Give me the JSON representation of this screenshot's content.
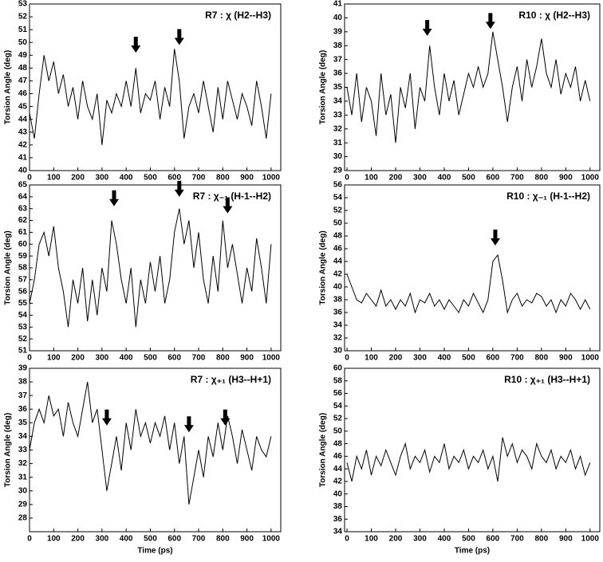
{
  "chart_data": [
    {
      "type": "line",
      "title": "R7 : χ (H2--H3)",
      "ylabel": "Torsion Angle (deg)",
      "x": [
        0,
        20,
        40,
        60,
        80,
        100,
        120,
        140,
        160,
        180,
        200,
        220,
        240,
        260,
        280,
        300,
        320,
        340,
        360,
        380,
        400,
        420,
        440,
        460,
        480,
        500,
        520,
        540,
        560,
        580,
        600,
        620,
        640,
        660,
        680,
        700,
        720,
        740,
        760,
        780,
        800,
        820,
        840,
        860,
        880,
        900,
        920,
        940,
        960,
        980,
        1000
      ],
      "series": [
        {
          "color": "#000000",
          "values": [
            44.5,
            42.5,
            46,
            49,
            47,
            48.5,
            46,
            47.5,
            45,
            46.5,
            44,
            47,
            45,
            44,
            46,
            42,
            45.5,
            44.5,
            46,
            45,
            47,
            45,
            48,
            44.5,
            46,
            45.5,
            47,
            44,
            46.5,
            45,
            49.5,
            47,
            42.5,
            45,
            46,
            44.5,
            47,
            45,
            43,
            46.5,
            44,
            47,
            45.5,
            44,
            46,
            45,
            43.5,
            47,
            45,
            42.5,
            46
          ]
        }
      ],
      "arrows": [
        {
          "x": 440,
          "y": 49.2
        },
        {
          "x": 620,
          "y": 49.8
        }
      ],
      "xlim": [
        0,
        1040
      ],
      "ylim": [
        40,
        53
      ],
      "xticks": [
        0,
        100,
        200,
        300,
        400,
        500,
        600,
        700,
        800,
        900,
        1000
      ],
      "yticks": [
        40,
        41,
        42,
        43,
        44,
        45,
        46,
        47,
        48,
        49,
        50,
        51,
        52,
        53
      ]
    },
    {
      "type": "line",
      "title": "R10 : χ (H2--H3)",
      "ylabel": "Torsion Angle (deg)",
      "x": [
        0,
        20,
        40,
        60,
        80,
        100,
        120,
        140,
        160,
        180,
        200,
        220,
        240,
        260,
        280,
        300,
        320,
        340,
        360,
        380,
        400,
        420,
        440,
        460,
        480,
        500,
        520,
        540,
        560,
        580,
        600,
        620,
        640,
        660,
        680,
        700,
        720,
        740,
        760,
        780,
        800,
        820,
        840,
        860,
        880,
        900,
        920,
        940,
        960,
        980,
        1000
      ],
      "series": [
        {
          "color": "#000000",
          "values": [
            35,
            33,
            36,
            32.5,
            35,
            34,
            31.5,
            36,
            33,
            34.5,
            31,
            35,
            33.5,
            36,
            32,
            35,
            34,
            38,
            35,
            33,
            36,
            34,
            35.5,
            33,
            34.5,
            36,
            35,
            36.5,
            35,
            36,
            39,
            37,
            35,
            32.5,
            35,
            36.5,
            34,
            37,
            35,
            36.5,
            38.5,
            36,
            35,
            37,
            34.5,
            36,
            35,
            36.5,
            34,
            35.5,
            34
          ]
        }
      ],
      "arrows": [
        {
          "x": 330,
          "y": 38.7
        },
        {
          "x": 590,
          "y": 39.2
        }
      ],
      "xlim": [
        -10,
        1040
      ],
      "ylim": [
        29,
        41
      ],
      "xticks": [
        0,
        100,
        200,
        300,
        400,
        500,
        600,
        700,
        800,
        900,
        1000
      ],
      "yticks": [
        29,
        30,
        31,
        32,
        33,
        34,
        35,
        36,
        37,
        38,
        39,
        40,
        41
      ]
    },
    {
      "type": "line",
      "title": "R7 : χ₋₁ (H-1--H2)",
      "ylabel": "Torsion Angle (deg)",
      "x": [
        0,
        20,
        40,
        60,
        80,
        100,
        120,
        140,
        160,
        180,
        200,
        220,
        240,
        260,
        280,
        300,
        320,
        340,
        360,
        380,
        400,
        420,
        440,
        460,
        480,
        500,
        520,
        540,
        560,
        580,
        600,
        620,
        640,
        660,
        680,
        700,
        720,
        740,
        760,
        780,
        800,
        820,
        840,
        860,
        880,
        900,
        920,
        940,
        960,
        980,
        1000
      ],
      "series": [
        {
          "color": "#000000",
          "values": [
            55,
            57,
            60,
            61,
            59,
            61.5,
            58,
            56,
            53,
            57,
            55,
            58,
            53.5,
            57,
            54,
            58,
            56,
            62,
            60,
            57,
            55,
            58,
            53,
            57,
            55,
            58.5,
            56,
            59,
            55,
            57,
            61,
            63,
            60,
            62,
            58,
            61,
            57,
            55,
            59,
            56,
            62,
            58,
            60,
            57.5,
            55,
            58,
            56,
            60.5,
            58,
            55,
            60
          ]
        }
      ],
      "arrows": [
        {
          "x": 350,
          "y": 63.2
        },
        {
          "x": 620,
          "y": 64
        },
        {
          "x": 820,
          "y": 62.6
        }
      ],
      "xlim": [
        0,
        1040
      ],
      "ylim": [
        51,
        65
      ],
      "xticks": [
        0,
        100,
        200,
        300,
        400,
        500,
        600,
        700,
        800,
        900,
        1000
      ],
      "yticks": [
        51,
        52,
        53,
        54,
        55,
        56,
        57,
        58,
        59,
        60,
        61,
        62,
        63,
        64,
        65
      ]
    },
    {
      "type": "line",
      "title": "R10 : χ₋₁ (H-1--H2)",
      "ylabel": "Torsion Angle (deg)",
      "x": [
        0,
        20,
        40,
        60,
        80,
        100,
        120,
        140,
        160,
        180,
        200,
        220,
        240,
        260,
        280,
        300,
        320,
        340,
        360,
        380,
        400,
        420,
        440,
        460,
        480,
        500,
        520,
        540,
        560,
        580,
        600,
        620,
        640,
        660,
        680,
        700,
        720,
        740,
        760,
        780,
        800,
        820,
        840,
        860,
        880,
        900,
        920,
        940,
        960,
        980,
        1000
      ],
      "series": [
        {
          "color": "#000000",
          "values": [
            42,
            40,
            38,
            37.5,
            39,
            38,
            37,
            39.5,
            37,
            38,
            36.5,
            38,
            37,
            39,
            36,
            38,
            37.5,
            39,
            37,
            38,
            36.5,
            38,
            37,
            36,
            38,
            37,
            39,
            37.5,
            36,
            38,
            44,
            45,
            41,
            36,
            38,
            39,
            37,
            38,
            37.5,
            39,
            38.5,
            37,
            38,
            36,
            38,
            37,
            39,
            38,
            36.5,
            38,
            36.5
          ]
        }
      ],
      "arrows": [
        {
          "x": 610,
          "y": 46.5
        }
      ],
      "xlim": [
        -10,
        1040
      ],
      "ylim": [
        30,
        56
      ],
      "xticks": [
        0,
        100,
        200,
        300,
        400,
        500,
        600,
        700,
        800,
        900,
        1000
      ],
      "yticks": [
        30,
        32,
        34,
        36,
        38,
        40,
        42,
        44,
        46,
        48,
        50,
        52,
        54,
        56
      ]
    },
    {
      "type": "line",
      "title": "R7 : χ₊₁ (H3--H+1)",
      "ylabel": "Torsion Angle (deg)",
      "xlabel": "Time (ps)",
      "x": [
        0,
        20,
        40,
        60,
        80,
        100,
        120,
        140,
        160,
        180,
        200,
        220,
        240,
        260,
        280,
        300,
        320,
        340,
        360,
        380,
        400,
        420,
        440,
        460,
        480,
        500,
        520,
        540,
        560,
        580,
        600,
        620,
        640,
        660,
        680,
        700,
        720,
        740,
        760,
        780,
        800,
        820,
        840,
        860,
        880,
        900,
        920,
        940,
        960,
        980,
        1000
      ],
      "series": [
        {
          "color": "#000000",
          "values": [
            33,
            35,
            36,
            35,
            37,
            35.5,
            36,
            34,
            36.5,
            35,
            34,
            36,
            38,
            35,
            36,
            33,
            30,
            32,
            34,
            31.5,
            35,
            33,
            36,
            34,
            35,
            33.5,
            35,
            34,
            35.5,
            33,
            35,
            32,
            34,
            29,
            31,
            33,
            31,
            34,
            32.5,
            35,
            33,
            35.5,
            34,
            32,
            34.5,
            33,
            31.5,
            34,
            33,
            32.5,
            34
          ]
        }
      ],
      "arrows": [
        {
          "x": 320,
          "y": 34.8
        },
        {
          "x": 660,
          "y": 34.3
        },
        {
          "x": 810,
          "y": 34.8
        }
      ],
      "xlim": [
        0,
        1040
      ],
      "ylim": [
        27,
        39
      ],
      "xticks": [
        0,
        100,
        200,
        300,
        400,
        500,
        600,
        700,
        800,
        900,
        1000
      ],
      "yticks": [
        28,
        29,
        30,
        31,
        32,
        33,
        34,
        35,
        36,
        37,
        38,
        39
      ]
    },
    {
      "type": "line",
      "title": "R10 : χ₊₁ (H3--H+1)",
      "ylabel": "Torsion Angle (deg)",
      "xlabel": "Time (ps)",
      "x": [
        0,
        20,
        40,
        60,
        80,
        100,
        120,
        140,
        160,
        180,
        200,
        220,
        240,
        260,
        280,
        300,
        320,
        340,
        360,
        380,
        400,
        420,
        440,
        460,
        480,
        500,
        520,
        540,
        560,
        580,
        600,
        620,
        640,
        660,
        680,
        700,
        720,
        740,
        760,
        780,
        800,
        820,
        840,
        860,
        880,
        900,
        920,
        940,
        960,
        980,
        1000
      ],
      "series": [
        {
          "color": "#000000",
          "values": [
            45,
            42,
            46,
            44,
            47,
            43,
            46,
            44.5,
            47,
            45,
            43,
            46,
            48,
            44,
            46,
            45,
            47,
            43.5,
            46,
            45,
            48,
            44,
            46,
            45,
            47,
            44,
            46,
            45,
            47,
            44,
            46,
            42,
            49,
            46,
            48,
            45,
            47,
            46,
            44,
            48,
            46,
            45,
            47,
            44,
            46,
            45,
            47,
            44,
            46,
            43,
            45
          ]
        }
      ],
      "arrows": [],
      "xlim": [
        -10,
        1040
      ],
      "ylim": [
        34,
        60
      ],
      "xticks": [
        0,
        100,
        200,
        300,
        400,
        500,
        600,
        700,
        800,
        900,
        1000
      ],
      "yticks": [
        34,
        36,
        38,
        40,
        42,
        44,
        46,
        48,
        50,
        52,
        54,
        56,
        58,
        60
      ]
    }
  ]
}
